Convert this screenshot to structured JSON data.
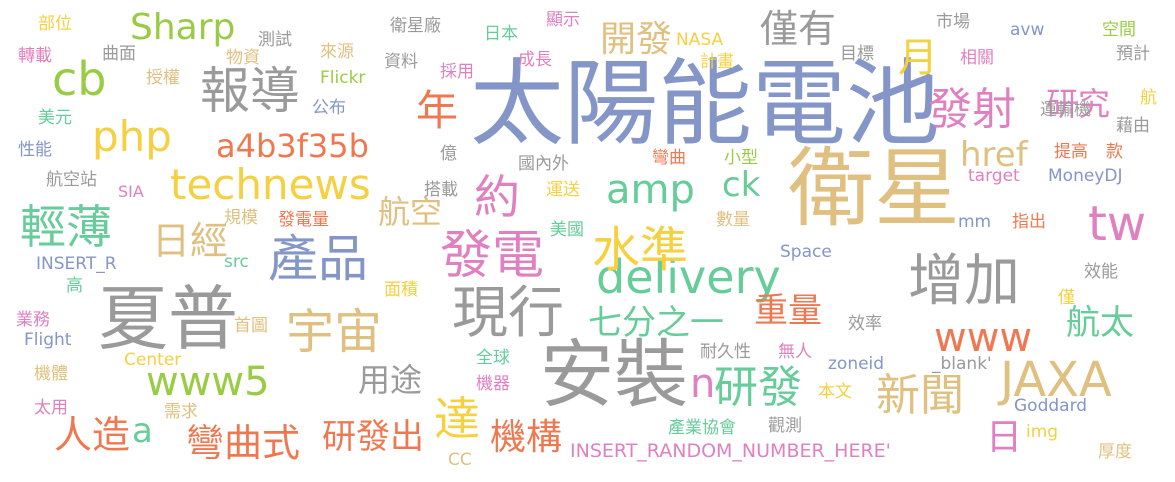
{
  "palette": {
    "blue": "#8496c8",
    "gold": "#e0c080",
    "grey": "#9a9a9a",
    "red": "#f07850",
    "green": "#66cc99",
    "pink": "#e080c0",
    "lime": "#99cc44",
    "yellow": "#f5d040"
  },
  "words": [
    {
      "text": "太陽能",
      "color": "blue"
    },
    {
      "text": "電池",
      "color": "blue"
    },
    {
      "text": "衛星",
      "color": "gold"
    },
    {
      "text": "夏普",
      "color": "grey"
    },
    {
      "text": "安裝",
      "color": "grey"
    },
    {
      "text": "現行",
      "color": "grey"
    },
    {
      "text": "增加",
      "color": "grey"
    },
    {
      "text": "delivery",
      "color": "green"
    },
    {
      "text": "technews",
      "color": "yellow"
    },
    {
      "text": "報導",
      "color": "grey"
    },
    {
      "text": "php",
      "color": "yellow"
    },
    {
      "text": "cb",
      "color": "lime"
    },
    {
      "text": "Sharp",
      "color": "lime"
    },
    {
      "text": "a4b3f35b",
      "color": "red"
    },
    {
      "text": "年",
      "color": "red"
    },
    {
      "text": "月",
      "color": "yellow"
    },
    {
      "text": "發射",
      "color": "pink"
    },
    {
      "text": "研究",
      "color": "pink"
    },
    {
      "text": "開發",
      "color": "gold"
    },
    {
      "text": "僅有",
      "color": "grey"
    },
    {
      "text": "amp",
      "color": "green"
    },
    {
      "text": "ck",
      "color": "green"
    },
    {
      "text": "href",
      "color": "gold"
    },
    {
      "text": "約",
      "color": "pink"
    },
    {
      "text": "tw",
      "color": "pink"
    },
    {
      "text": "輕薄",
      "color": "green"
    },
    {
      "text": "日經",
      "color": "gold"
    },
    {
      "text": "航空",
      "color": "gold"
    },
    {
      "text": "產品",
      "color": "blue"
    },
    {
      "text": "發電",
      "color": "pink"
    },
    {
      "text": "水準",
      "color": "yellow"
    },
    {
      "text": "宇宙",
      "color": "gold"
    },
    {
      "text": "七分之一",
      "color": "green"
    },
    {
      "text": "重量",
      "color": "red"
    },
    {
      "text": "www5",
      "color": "lime"
    },
    {
      "text": "www",
      "color": "red"
    },
    {
      "text": "航太",
      "color": "green"
    },
    {
      "text": "JAXA",
      "color": "gold"
    },
    {
      "text": "新聞",
      "color": "gold"
    },
    {
      "text": "研發",
      "color": "green"
    },
    {
      "text": "n",
      "color": "pink"
    },
    {
      "text": "用途",
      "color": "grey"
    },
    {
      "text": "達",
      "color": "yellow"
    },
    {
      "text": "機構",
      "color": "red"
    },
    {
      "text": "研發出",
      "color": "red"
    },
    {
      "text": "彎曲式",
      "color": "red"
    },
    {
      "text": "人造",
      "color": "red"
    },
    {
      "text": "a",
      "color": "green"
    },
    {
      "text": "日",
      "color": "pink"
    },
    {
      "text": "INSERT_RANDOM_NUMBER_HERE'",
      "color": "pink"
    },
    {
      "text": "部位",
      "color": "yellow"
    },
    {
      "text": "轉載",
      "color": "pink"
    },
    {
      "text": "美元",
      "color": "green"
    },
    {
      "text": "性能",
      "color": "blue"
    },
    {
      "text": "航空站",
      "color": "grey"
    },
    {
      "text": "SIA",
      "color": "pink"
    },
    {
      "text": "INSERT_R",
      "color": "blue"
    },
    {
      "text": "高",
      "color": "green"
    },
    {
      "text": "業務",
      "color": "pink"
    },
    {
      "text": "Flight",
      "color": "blue"
    },
    {
      "text": "機體",
      "color": "gold"
    },
    {
      "text": "太用",
      "color": "pink"
    },
    {
      "text": "曲面",
      "color": "grey"
    },
    {
      "text": "授權",
      "color": "gold"
    },
    {
      "text": "物資",
      "color": "gold"
    },
    {
      "text": "測試",
      "color": "grey"
    },
    {
      "text": "來源",
      "color": "gold"
    },
    {
      "text": "Flickr",
      "color": "lime"
    },
    {
      "text": "公布",
      "color": "blue"
    },
    {
      "text": "億",
      "color": "grey"
    },
    {
      "text": "搭載",
      "color": "grey"
    },
    {
      "text": "規模",
      "color": "gold"
    },
    {
      "text": "發電量",
      "color": "red"
    },
    {
      "text": "src",
      "color": "green"
    },
    {
      "text": "面積",
      "color": "yellow"
    },
    {
      "text": "首圖",
      "color": "gold"
    },
    {
      "text": "Center",
      "color": "yellow"
    },
    {
      "text": "需求",
      "color": "gold"
    },
    {
      "text": "衛星廠",
      "color": "grey"
    },
    {
      "text": "資料",
      "color": "grey"
    },
    {
      "text": "採用",
      "color": "pink"
    },
    {
      "text": "日本",
      "color": "green"
    },
    {
      "text": "成長",
      "color": "pink"
    },
    {
      "text": "顯示",
      "color": "pink"
    },
    {
      "text": "NASA",
      "color": "yellow"
    },
    {
      "text": "計畫",
      "color": "yellow"
    },
    {
      "text": "國內外",
      "color": "grey"
    },
    {
      "text": "運送",
      "color": "yellow"
    },
    {
      "text": "美國",
      "color": "green"
    },
    {
      "text": "全球",
      "color": "green"
    },
    {
      "text": "機器",
      "color": "pink"
    },
    {
      "text": "彎曲",
      "color": "red"
    },
    {
      "text": "小型",
      "color": "lime"
    },
    {
      "text": "數量",
      "color": "gold"
    },
    {
      "text": "Space",
      "color": "blue"
    },
    {
      "text": "耐久性",
      "color": "grey"
    },
    {
      "text": "無人",
      "color": "pink"
    },
    {
      "text": "本文",
      "color": "yellow"
    },
    {
      "text": "產業協會",
      "color": "green"
    },
    {
      "text": "觀測",
      "color": "grey"
    },
    {
      "text": "CC",
      "color": "gold"
    },
    {
      "text": "市場",
      "color": "grey"
    },
    {
      "text": "目標",
      "color": "grey"
    },
    {
      "text": "相關",
      "color": "pink"
    },
    {
      "text": "avw",
      "color": "blue"
    },
    {
      "text": "空間",
      "color": "lime"
    },
    {
      "text": "預計",
      "color": "grey"
    },
    {
      "text": "航",
      "color": "yellow"
    },
    {
      "text": "運輸機",
      "color": "grey"
    },
    {
      "text": "藉由",
      "color": "grey"
    },
    {
      "text": "提高",
      "color": "red"
    },
    {
      "text": "款",
      "color": "red"
    },
    {
      "text": "target",
      "color": "pink"
    },
    {
      "text": "MoneyDJ",
      "color": "blue"
    },
    {
      "text": "mm",
      "color": "blue"
    },
    {
      "text": "指出",
      "color": "red"
    },
    {
      "text": "效能",
      "color": "grey"
    },
    {
      "text": "僅",
      "color": "yellow"
    },
    {
      "text": "效率",
      "color": "grey"
    },
    {
      "text": "zoneid",
      "color": "blue"
    },
    {
      "text": "_blank'",
      "color": "grey"
    },
    {
      "text": "Goddard",
      "color": "blue"
    },
    {
      "text": "img",
      "color": "yellow"
    },
    {
      "text": "厚度",
      "color": "gold"
    }
  ]
}
